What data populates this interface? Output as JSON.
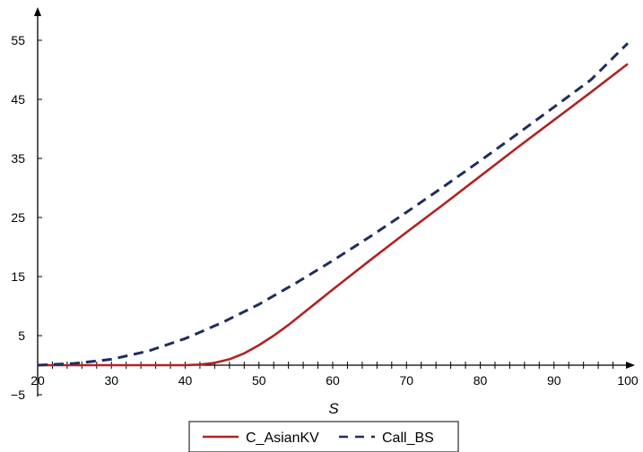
{
  "chart_data": {
    "type": "line",
    "xlabel": "S",
    "ylabel": "",
    "xlim": [
      20,
      100
    ],
    "ylim": [
      -5,
      60
    ],
    "x_ticks": [
      20,
      30,
      40,
      50,
      60,
      70,
      80,
      90,
      100
    ],
    "y_ticks": [
      -5,
      5,
      15,
      25,
      35,
      45,
      55
    ],
    "x_minor_step": 2,
    "grid": false,
    "legend": "bottom",
    "series": [
      {
        "name": "C_AsianKV",
        "color": "#b22222",
        "style": "solid",
        "x": [
          20,
          25,
          30,
          35,
          40,
          42,
          44,
          46,
          48,
          50,
          52,
          54,
          56,
          58,
          60,
          65,
          70,
          75,
          80,
          85,
          90,
          95,
          100
        ],
        "values": [
          0,
          0,
          0,
          0,
          0,
          0.1,
          0.4,
          1.0,
          2.0,
          3.4,
          5.0,
          6.8,
          8.8,
          10.8,
          12.8,
          17.7,
          22.5,
          27.2,
          32.0,
          36.8,
          41.5,
          46.2,
          51.0
        ]
      },
      {
        "name": "Call_BS",
        "color": "#1f2d5c",
        "style": "dashed",
        "x": [
          20,
          25,
          30,
          35,
          40,
          45,
          50,
          55,
          60,
          65,
          70,
          75,
          80,
          85,
          90,
          95,
          100
        ],
        "values": [
          0,
          0.3,
          1.0,
          2.4,
          4.5,
          7.2,
          10.3,
          13.9,
          17.7,
          21.7,
          25.9,
          30.2,
          34.6,
          39.1,
          43.7,
          48.3,
          54.5
        ]
      }
    ]
  }
}
